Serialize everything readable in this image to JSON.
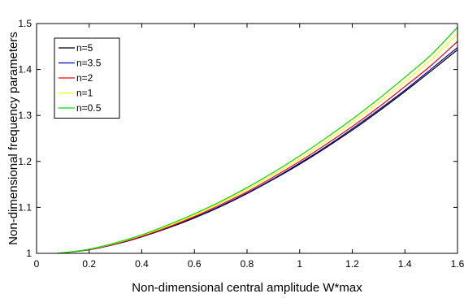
{
  "chart_data": {
    "type": "line",
    "title": "",
    "xlabel": "Non-dimensional central amplitude W*max",
    "ylabel": "Non-dimensional  frequency parameters",
    "xlim": [
      0,
      1.6
    ],
    "ylim": [
      1,
      1.5
    ],
    "xticks": [
      0,
      0.2,
      0.4,
      0.6,
      0.8,
      1,
      1.2,
      1.4,
      1.6
    ],
    "xtick_labels": [
      "0",
      "0.2",
      "0.4",
      "0.6",
      "0.8",
      "1",
      "1.2",
      "1.4",
      "1.6"
    ],
    "yticks": [
      1,
      1.1,
      1.2,
      1.3,
      1.4,
      1.5
    ],
    "ytick_labels": [
      "1",
      "1.1",
      "1.2",
      "1.3",
      "1.4",
      "1.5"
    ],
    "grid": false,
    "legend_position": "top-left",
    "x": [
      0.08,
      0.2,
      0.3,
      0.4,
      0.5,
      0.6,
      0.7,
      0.8,
      0.9,
      1.0,
      1.1,
      1.2,
      1.3,
      1.4,
      1.5,
      1.6
    ],
    "series": [
      {
        "name": "n=5",
        "color": "#000000",
        "values": [
          1.0,
          1.008,
          1.02,
          1.036,
          1.055,
          1.077,
          1.102,
          1.13,
          1.161,
          1.194,
          1.23,
          1.268,
          1.309,
          1.352,
          1.397,
          1.443
        ]
      },
      {
        "name": "n=3.5",
        "color": "#0000aa",
        "values": [
          1.0,
          1.008,
          1.02,
          1.036,
          1.056,
          1.078,
          1.103,
          1.131,
          1.162,
          1.196,
          1.232,
          1.271,
          1.312,
          1.355,
          1.401,
          1.448
        ]
      },
      {
        "name": "n=2",
        "color": "#ff0000",
        "values": [
          1.0,
          1.008,
          1.021,
          1.037,
          1.057,
          1.08,
          1.106,
          1.134,
          1.166,
          1.2,
          1.237,
          1.276,
          1.318,
          1.363,
          1.409,
          1.461
        ]
      },
      {
        "name": "n=1",
        "color": "#ffff00",
        "values": [
          1.0,
          1.009,
          1.022,
          1.039,
          1.06,
          1.083,
          1.11,
          1.139,
          1.171,
          1.206,
          1.244,
          1.285,
          1.328,
          1.374,
          1.422,
          1.478
        ]
      },
      {
        "name": "n=0.5",
        "color": "#00dd00",
        "values": [
          1.0,
          1.009,
          1.023,
          1.04,
          1.062,
          1.086,
          1.113,
          1.143,
          1.176,
          1.212,
          1.251,
          1.292,
          1.336,
          1.383,
          1.432,
          1.492
        ]
      }
    ]
  }
}
